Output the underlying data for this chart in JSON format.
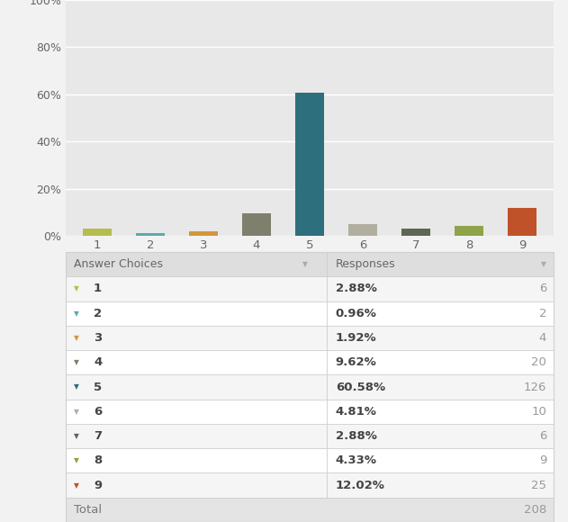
{
  "categories": [
    "1",
    "2",
    "3",
    "4",
    "5",
    "6",
    "7",
    "8",
    "9"
  ],
  "percentages": [
    2.88,
    0.96,
    1.92,
    9.62,
    60.58,
    4.81,
    2.88,
    4.33,
    12.02
  ],
  "counts": [
    6,
    2,
    4,
    20,
    126,
    10,
    6,
    9,
    25
  ],
  "total": 208,
  "bar_colors": [
    "#b5bd4e",
    "#5baaad",
    "#d4963a",
    "#7f7f6e",
    "#2e6f7e",
    "#b0ae9e",
    "#5f6655",
    "#8fa348",
    "#c0522a"
  ],
  "bg_color": "#f2f2f2",
  "plot_bg_color": "#e8e8e8",
  "ytick_values": [
    0,
    20,
    40,
    60,
    80,
    100
  ],
  "ylabel_ticks": [
    "0%",
    "20%",
    "40%",
    "60%",
    "80%",
    "100%"
  ],
  "col_header_1": "Answer Choices",
  "col_header_2": "Responses",
  "total_label": "Total",
  "header_bg": "#dedede",
  "row_bg_even": "#f5f5f5",
  "row_bg_odd": "#ffffff",
  "total_bg": "#e4e4e4",
  "border_color": "#d0d0d0",
  "header_text_color": "#666666",
  "cell_text_color": "#444444",
  "count_text_color": "#999999",
  "total_text_color": "#777777"
}
